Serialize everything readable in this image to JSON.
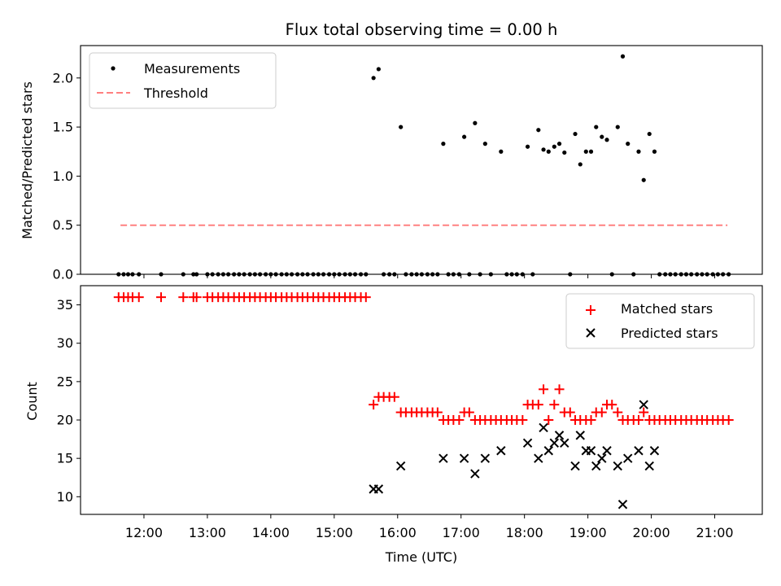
{
  "chart_data": [
    {
      "type": "scatter",
      "title": "Flux total observing time = 0.00 h",
      "xlabel": "",
      "ylabel": "Matched/Predicted stars",
      "xlim": [
        11.0,
        21.75
      ],
      "ylim": [
        0,
        2.33
      ],
      "yticks": [
        "0.0",
        "0.5",
        "1.0",
        "1.5",
        "2.0"
      ],
      "ytick_values": [
        0,
        0.5,
        1.0,
        1.5,
        2.0
      ],
      "legend": {
        "placement": "top-left",
        "entries": [
          "Measurements",
          "Threshold"
        ]
      },
      "colors": {
        "measurements": "#000000",
        "threshold": "#ff8080"
      },
      "threshold": {
        "name": "Threshold",
        "value": 0.5,
        "x_range": [
          11.63,
          21.2
        ]
      },
      "series": [
        {
          "name": "Measurements",
          "points": [
            [
              11.6,
              0
            ],
            [
              11.68,
              0
            ],
            [
              11.75,
              0
            ],
            [
              11.82,
              0
            ],
            [
              11.92,
              0
            ],
            [
              12.27,
              0
            ],
            [
              12.62,
              0
            ],
            [
              12.78,
              0
            ],
            [
              12.83,
              0
            ],
            [
              13.0,
              0
            ],
            [
              13.08,
              0
            ],
            [
              13.17,
              0
            ],
            [
              13.25,
              0
            ],
            [
              13.33,
              0
            ],
            [
              13.42,
              0
            ],
            [
              13.5,
              0
            ],
            [
              13.58,
              0
            ],
            [
              13.67,
              0
            ],
            [
              13.75,
              0
            ],
            [
              13.83,
              0
            ],
            [
              13.92,
              0
            ],
            [
              14.0,
              0
            ],
            [
              14.08,
              0
            ],
            [
              14.17,
              0
            ],
            [
              14.25,
              0
            ],
            [
              14.33,
              0
            ],
            [
              14.42,
              0
            ],
            [
              14.5,
              0
            ],
            [
              14.58,
              0
            ],
            [
              14.67,
              0
            ],
            [
              14.75,
              0
            ],
            [
              14.83,
              0
            ],
            [
              14.92,
              0
            ],
            [
              15.0,
              0
            ],
            [
              15.08,
              0
            ],
            [
              15.17,
              0
            ],
            [
              15.25,
              0
            ],
            [
              15.33,
              0
            ],
            [
              15.42,
              0
            ],
            [
              15.5,
              0
            ],
            [
              15.62,
              2.0
            ],
            [
              15.7,
              2.09
            ],
            [
              15.78,
              0
            ],
            [
              15.87,
              0
            ],
            [
              15.95,
              0
            ],
            [
              16.05,
              1.5
            ],
            [
              16.13,
              0
            ],
            [
              16.22,
              0
            ],
            [
              16.3,
              0
            ],
            [
              16.38,
              0
            ],
            [
              16.47,
              0
            ],
            [
              16.55,
              0
            ],
            [
              16.63,
              0
            ],
            [
              16.72,
              1.33
            ],
            [
              16.8,
              0
            ],
            [
              16.88,
              0
            ],
            [
              16.97,
              0
            ],
            [
              17.05,
              1.4
            ],
            [
              17.13,
              0
            ],
            [
              17.22,
              1.54
            ],
            [
              17.3,
              0
            ],
            [
              17.38,
              1.33
            ],
            [
              17.47,
              0
            ],
            [
              17.63,
              1.25
            ],
            [
              17.72,
              0
            ],
            [
              17.8,
              0
            ],
            [
              17.88,
              0
            ],
            [
              17.97,
              0
            ],
            [
              18.05,
              1.3
            ],
            [
              18.13,
              0
            ],
            [
              18.22,
              1.47
            ],
            [
              18.3,
              1.27
            ],
            [
              18.38,
              1.25
            ],
            [
              18.47,
              1.3
            ],
            [
              18.55,
              1.33
            ],
            [
              18.63,
              1.24
            ],
            [
              18.72,
              0
            ],
            [
              18.8,
              1.43
            ],
            [
              18.88,
              1.12
            ],
            [
              18.97,
              1.25
            ],
            [
              19.05,
              1.25
            ],
            [
              19.13,
              1.5
            ],
            [
              19.22,
              1.4
            ],
            [
              19.3,
              1.37
            ],
            [
              19.38,
              0
            ],
            [
              19.47,
              1.5
            ],
            [
              19.55,
              2.22
            ],
            [
              19.63,
              1.33
            ],
            [
              19.72,
              0
            ],
            [
              19.8,
              1.25
            ],
            [
              19.88,
              0.96
            ],
            [
              19.97,
              1.43
            ],
            [
              20.05,
              1.25
            ],
            [
              20.13,
              0
            ],
            [
              20.22,
              0
            ],
            [
              20.3,
              0
            ],
            [
              20.38,
              0
            ],
            [
              20.47,
              0
            ],
            [
              20.55,
              0
            ],
            [
              20.63,
              0
            ],
            [
              20.72,
              0
            ],
            [
              20.8,
              0
            ],
            [
              20.88,
              0
            ],
            [
              20.97,
              0
            ],
            [
              21.05,
              0
            ],
            [
              21.13,
              0
            ],
            [
              21.22,
              0
            ]
          ]
        }
      ]
    },
    {
      "type": "scatter",
      "title": "",
      "xlabel": "Time (UTC)",
      "ylabel": "Count",
      "xlim": [
        11.0,
        21.75
      ],
      "ylim": [
        7.7,
        37.5
      ],
      "yticks": [
        "10",
        "15",
        "20",
        "25",
        "30",
        "35"
      ],
      "ytick_values": [
        10,
        15,
        20,
        25,
        30,
        35
      ],
      "xticks": [
        "12:00",
        "13:00",
        "14:00",
        "15:00",
        "16:00",
        "17:00",
        "18:00",
        "19:00",
        "20:00",
        "21:00"
      ],
      "xtick_values": [
        12,
        13,
        14,
        15,
        16,
        17,
        18,
        19,
        20,
        21
      ],
      "legend": {
        "placement": "top-right",
        "entries": [
          "Matched stars",
          "Predicted stars"
        ]
      },
      "colors": {
        "matched": "#ff0000",
        "predicted": "#000000"
      },
      "series": [
        {
          "name": "Matched stars",
          "marker": "plus",
          "points": [
            [
              11.6,
              36
            ],
            [
              11.68,
              36
            ],
            [
              11.75,
              36
            ],
            [
              11.82,
              36
            ],
            [
              11.92,
              36
            ],
            [
              12.27,
              36
            ],
            [
              12.62,
              36
            ],
            [
              12.78,
              36
            ],
            [
              12.83,
              36
            ],
            [
              13.0,
              36
            ],
            [
              13.08,
              36
            ],
            [
              13.17,
              36
            ],
            [
              13.25,
              36
            ],
            [
              13.33,
              36
            ],
            [
              13.42,
              36
            ],
            [
              13.5,
              36
            ],
            [
              13.58,
              36
            ],
            [
              13.67,
              36
            ],
            [
              13.75,
              36
            ],
            [
              13.83,
              36
            ],
            [
              13.92,
              36
            ],
            [
              14.0,
              36
            ],
            [
              14.08,
              36
            ],
            [
              14.17,
              36
            ],
            [
              14.25,
              36
            ],
            [
              14.33,
              36
            ],
            [
              14.42,
              36
            ],
            [
              14.5,
              36
            ],
            [
              14.58,
              36
            ],
            [
              14.67,
              36
            ],
            [
              14.75,
              36
            ],
            [
              14.83,
              36
            ],
            [
              14.92,
              36
            ],
            [
              15.0,
              36
            ],
            [
              15.08,
              36
            ],
            [
              15.17,
              36
            ],
            [
              15.25,
              36
            ],
            [
              15.33,
              36
            ],
            [
              15.42,
              36
            ],
            [
              15.5,
              36
            ],
            [
              15.62,
              22
            ],
            [
              15.7,
              23
            ],
            [
              15.78,
              23
            ],
            [
              15.87,
              23
            ],
            [
              15.95,
              23
            ],
            [
              16.05,
              21
            ],
            [
              16.13,
              21
            ],
            [
              16.22,
              21
            ],
            [
              16.3,
              21
            ],
            [
              16.38,
              21
            ],
            [
              16.47,
              21
            ],
            [
              16.55,
              21
            ],
            [
              16.63,
              21
            ],
            [
              16.72,
              20
            ],
            [
              16.8,
              20
            ],
            [
              16.88,
              20
            ],
            [
              16.97,
              20
            ],
            [
              17.05,
              21
            ],
            [
              17.13,
              21
            ],
            [
              17.22,
              20
            ],
            [
              17.3,
              20
            ],
            [
              17.38,
              20
            ],
            [
              17.47,
              20
            ],
            [
              17.55,
              20
            ],
            [
              17.63,
              20
            ],
            [
              17.72,
              20
            ],
            [
              17.8,
              20
            ],
            [
              17.88,
              20
            ],
            [
              17.97,
              20
            ],
            [
              18.05,
              22
            ],
            [
              18.13,
              22
            ],
            [
              18.22,
              22
            ],
            [
              18.3,
              24
            ],
            [
              18.38,
              20
            ],
            [
              18.47,
              22
            ],
            [
              18.55,
              24
            ],
            [
              18.63,
              21
            ],
            [
              18.72,
              21
            ],
            [
              18.8,
              20
            ],
            [
              18.88,
              20
            ],
            [
              18.97,
              20
            ],
            [
              19.05,
              20
            ],
            [
              19.13,
              21
            ],
            [
              19.22,
              21
            ],
            [
              19.3,
              22
            ],
            [
              19.38,
              22
            ],
            [
              19.47,
              21
            ],
            [
              19.55,
              20
            ],
            [
              19.63,
              20
            ],
            [
              19.72,
              20
            ],
            [
              19.8,
              20
            ],
            [
              19.88,
              21
            ],
            [
              19.97,
              20
            ],
            [
              20.05,
              20
            ],
            [
              20.13,
              20
            ],
            [
              20.22,
              20
            ],
            [
              20.3,
              20
            ],
            [
              20.38,
              20
            ],
            [
              20.47,
              20
            ],
            [
              20.55,
              20
            ],
            [
              20.63,
              20
            ],
            [
              20.72,
              20
            ],
            [
              20.8,
              20
            ],
            [
              20.88,
              20
            ],
            [
              20.97,
              20
            ],
            [
              21.05,
              20
            ],
            [
              21.13,
              20
            ],
            [
              21.22,
              20
            ]
          ]
        },
        {
          "name": "Predicted stars",
          "marker": "x",
          "points": [
            [
              15.62,
              11
            ],
            [
              15.7,
              11
            ],
            [
              16.05,
              14
            ],
            [
              16.72,
              15
            ],
            [
              17.05,
              15
            ],
            [
              17.22,
              13
            ],
            [
              17.38,
              15
            ],
            [
              17.63,
              16
            ],
            [
              18.05,
              17
            ],
            [
              18.22,
              15
            ],
            [
              18.3,
              19
            ],
            [
              18.38,
              16
            ],
            [
              18.47,
              17
            ],
            [
              18.55,
              18
            ],
            [
              18.63,
              17
            ],
            [
              18.8,
              14
            ],
            [
              18.88,
              18
            ],
            [
              18.97,
              16
            ],
            [
              19.05,
              16
            ],
            [
              19.13,
              14
            ],
            [
              19.22,
              15
            ],
            [
              19.3,
              16
            ],
            [
              19.47,
              14
            ],
            [
              19.55,
              9
            ],
            [
              19.63,
              15
            ],
            [
              19.8,
              16
            ],
            [
              19.88,
              22
            ],
            [
              19.97,
              14
            ],
            [
              20.05,
              16
            ]
          ]
        }
      ]
    }
  ]
}
